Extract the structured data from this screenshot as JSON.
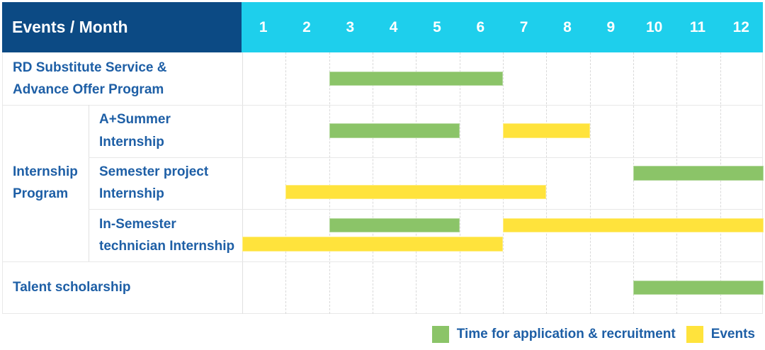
{
  "header": {
    "title": "Events / Month"
  },
  "chart_data": {
    "type": "table",
    "subtype": "gantt",
    "title": "Events / Month",
    "months": [
      "1",
      "2",
      "3",
      "4",
      "5",
      "6",
      "7",
      "8",
      "9",
      "10",
      "11",
      "12"
    ],
    "x_range": [
      1,
      12
    ],
    "grid": true,
    "colors": {
      "header_bg": "#0C4A84",
      "months_bg": "#1ECFEC",
      "label_text": "#1E5FA6",
      "application": "#8BC468",
      "event": "#FFE33C"
    },
    "legend": [
      {
        "key": "application",
        "label": "Time for application & recruitment"
      },
      {
        "key": "event",
        "label": "Events"
      }
    ],
    "rows": [
      {
        "group": null,
        "label": "RD Substitute Service &\nAdvance Offer Program",
        "bars": [
          {
            "kind": "application",
            "start_month": 3,
            "end_month": 6,
            "lane": "mid"
          }
        ]
      },
      {
        "group": "Internship\nProgram",
        "label": "A+Summer\nInternship",
        "bars": [
          {
            "kind": "application",
            "start_month": 3,
            "end_month": 5,
            "lane": "mid"
          },
          {
            "kind": "event",
            "start_month": 7,
            "end_month": 8,
            "lane": "mid"
          }
        ]
      },
      {
        "group": "Internship\nProgram",
        "label": "Semester project\nInternship",
        "bars": [
          {
            "kind": "application",
            "start_month": 10,
            "end_month": 12,
            "lane": "top"
          },
          {
            "kind": "event",
            "start_month": 2,
            "end_month": 7,
            "lane": "bottom"
          }
        ]
      },
      {
        "group": "Internship\nProgram",
        "label": "In-Semester\ntechnician Internship",
        "bars": [
          {
            "kind": "application",
            "start_month": 3,
            "end_month": 5,
            "lane": "top"
          },
          {
            "kind": "event",
            "start_month": 7,
            "end_month": 12,
            "lane": "top"
          },
          {
            "kind": "event",
            "start_month": 1,
            "end_month": 6,
            "lane": "bottom"
          }
        ]
      },
      {
        "group": null,
        "label": "Talent scholarship",
        "bars": [
          {
            "kind": "application",
            "start_month": 10,
            "end_month": 12,
            "lane": "mid"
          }
        ]
      }
    ]
  }
}
